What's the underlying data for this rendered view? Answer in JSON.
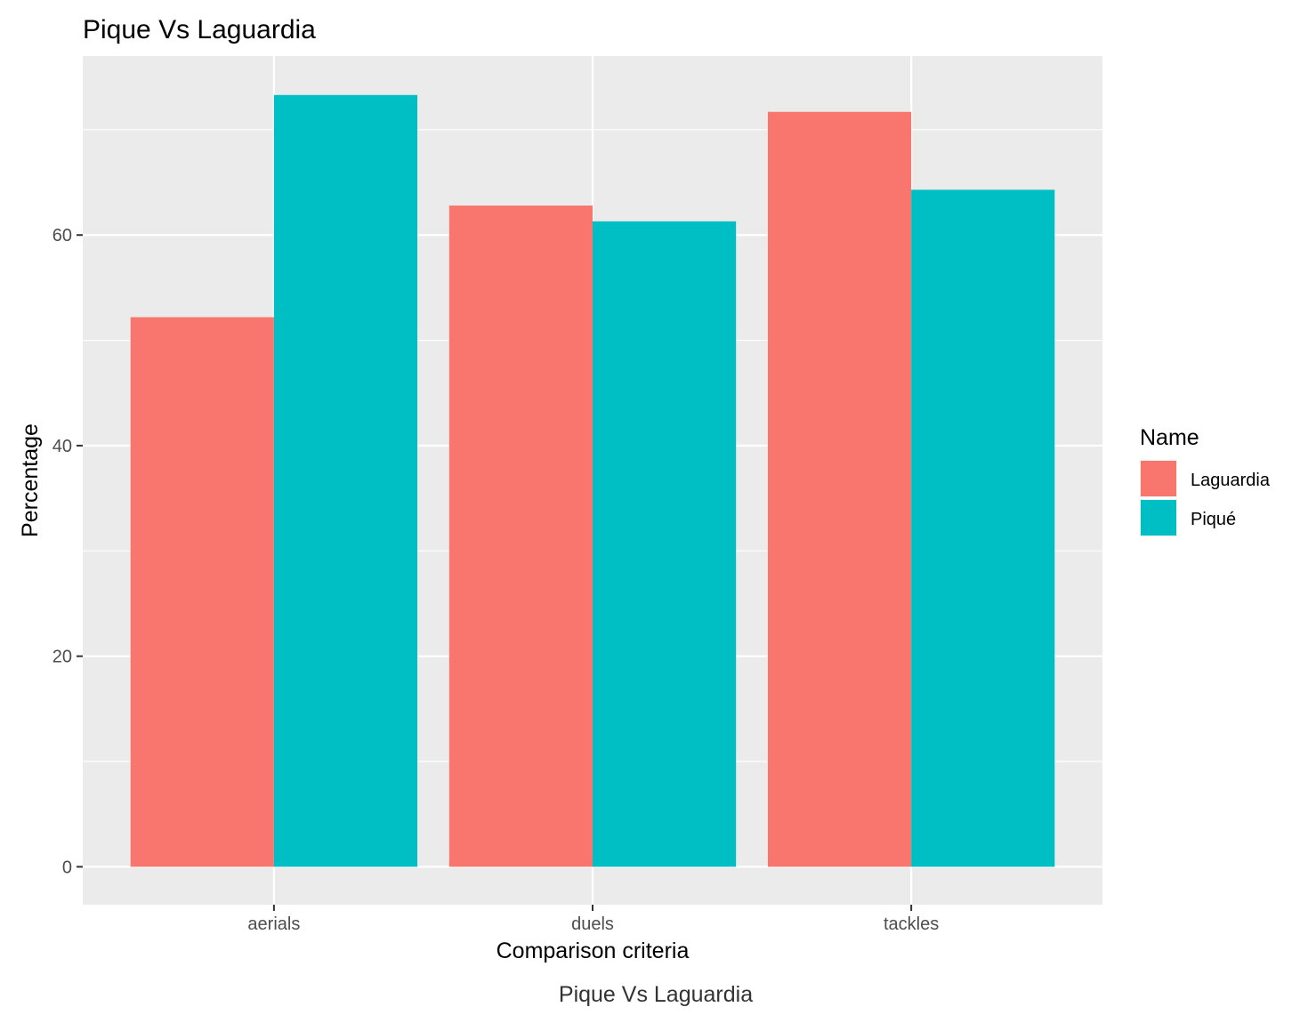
{
  "chart_data": {
    "type": "bar",
    "title": "Pique Vs Laguardia",
    "caption": "Pique Vs Laguardia",
    "xlabel": "Comparison criteria",
    "ylabel": "Percentage",
    "categories": [
      "aerials",
      "duels",
      "tackles"
    ],
    "series": [
      {
        "name": "Laguardia",
        "color": "#F8766D",
        "values": [
          52.2,
          62.8,
          71.7
        ]
      },
      {
        "name": "Piqué",
        "color": "#00BFC4",
        "values": [
          73.3,
          61.3,
          64.3
        ]
      }
    ],
    "ylim": [
      -3.6,
      77.0
    ],
    "y_ticks": [
      0,
      20,
      40,
      60
    ],
    "y_tick_labels": [
      "0",
      "20",
      "40",
      "60"
    ],
    "grid": true,
    "legend": {
      "title": "Name",
      "position": "right"
    },
    "colors": {
      "panel": "#EBEBEB",
      "grid": "#FFFFFF",
      "ticks": "#333333"
    }
  }
}
